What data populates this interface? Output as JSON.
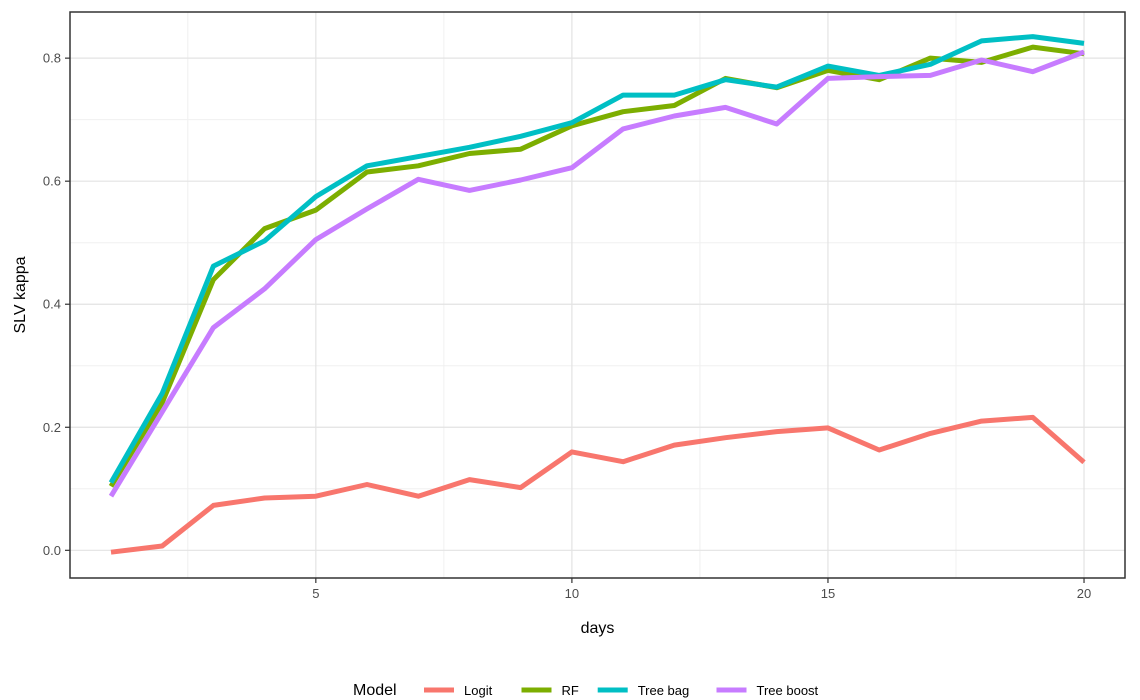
{
  "chart_data": {
    "type": "line",
    "xlabel": "days",
    "ylabel": "SLV kappa",
    "xlim": [
      0.2,
      20.8
    ],
    "ylim": [
      -0.045,
      0.875
    ],
    "x_ticks": [
      5,
      10,
      15,
      20
    ],
    "x_minor_ticks": [
      2.5,
      7.5,
      12.5,
      17.5
    ],
    "y_ticks": [
      0.0,
      0.2,
      0.4,
      0.6,
      0.8
    ],
    "y_tick_labels": [
      "0.0",
      "0.2",
      "0.4",
      "0.6",
      "0.8"
    ],
    "y_minor_ticks": [
      0.1,
      0.3,
      0.5,
      0.7
    ],
    "grid": true,
    "legend_position": "bottom",
    "legend_title": "Model",
    "x": [
      1,
      2,
      3,
      4,
      5,
      6,
      7,
      8,
      9,
      10,
      11,
      12,
      13,
      14,
      15,
      16,
      17,
      18,
      19,
      20
    ],
    "series": [
      {
        "name": "Logit",
        "color": "#F8766D",
        "values": [
          -0.003,
          0.007,
          0.073,
          0.085,
          0.088,
          0.107,
          0.088,
          0.115,
          0.102,
          0.16,
          0.144,
          0.171,
          0.183,
          0.193,
          0.199,
          0.163,
          0.19,
          0.21,
          0.216,
          0.143
        ]
      },
      {
        "name": "RF",
        "color": "#7CAE00",
        "values": [
          0.104,
          0.24,
          0.44,
          0.523,
          0.553,
          0.615,
          0.625,
          0.645,
          0.652,
          0.69,
          0.713,
          0.723,
          0.767,
          0.752,
          0.78,
          0.765,
          0.8,
          0.793,
          0.818,
          0.807
        ]
      },
      {
        "name": "Tree bag",
        "color": "#00BFC4",
        "values": [
          0.11,
          0.255,
          0.462,
          0.503,
          0.575,
          0.625,
          0.64,
          0.655,
          0.673,
          0.695,
          0.74,
          0.74,
          0.765,
          0.753,
          0.787,
          0.772,
          0.79,
          0.828,
          0.835,
          0.824
        ]
      },
      {
        "name": "Tree boost",
        "color": "#C77CFF",
        "values": [
          0.088,
          0.225,
          0.362,
          0.425,
          0.505,
          0.555,
          0.603,
          0.585,
          0.602,
          0.622,
          0.685,
          0.706,
          0.72,
          0.693,
          0.767,
          0.77,
          0.772,
          0.797,
          0.778,
          0.81
        ]
      }
    ]
  }
}
